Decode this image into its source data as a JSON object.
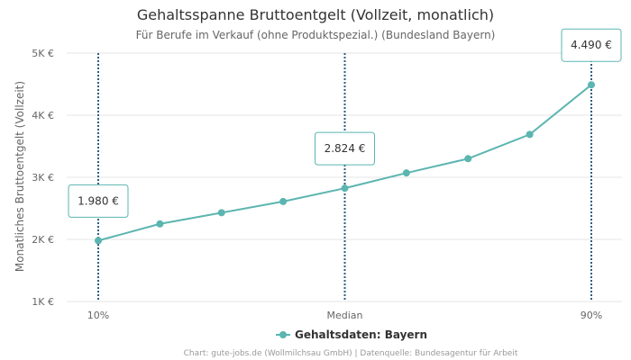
{
  "chart_data": {
    "type": "line",
    "title": "Gehaltsspanne Bruttoentgelt (Vollzeit, monatlich)",
    "subtitle": "Für Berufe im Verkauf (ohne Produktspezial.) (Bundesland Bayern)",
    "ylabel": "Monatliches Bruttoentgelt (Vollzeit)",
    "ylim": [
      1000,
      5000
    ],
    "y_ticks": [
      {
        "value": 1000,
        "label": "1K €"
      },
      {
        "value": 2000,
        "label": "2K €"
      },
      {
        "value": 3000,
        "label": "3K €"
      },
      {
        "value": 4000,
        "label": "4K €"
      },
      {
        "value": 5000,
        "label": "5K €"
      }
    ],
    "x_ticks": [
      {
        "index": 0,
        "label": "10%"
      },
      {
        "index": 4,
        "label": "Median"
      },
      {
        "index": 8,
        "label": "90%"
      }
    ],
    "series": [
      {
        "name": "Gehaltsdaten: Bayern",
        "values": [
          1980,
          2250,
          2430,
          2610,
          2824,
          3070,
          3300,
          3690,
          4490
        ]
      }
    ],
    "markers": [
      {
        "index": 0,
        "value": 1980,
        "label": "1.980 €"
      },
      {
        "index": 4,
        "value": 2824,
        "label": "2.824 €"
      },
      {
        "index": 8,
        "value": 4490,
        "label": "4.490 €"
      }
    ],
    "legend": "bottom-center",
    "grid": true,
    "colors": {
      "series": "#5bb5b0",
      "marker_line": "#2a5f82",
      "grid": "#e6e6e6",
      "callout_border": "#5bb5b0"
    },
    "credits": "Chart: gute-jobs.de (Wollmilchsau GmbH) | Datenquelle: Bundesagentur für Arbeit"
  }
}
